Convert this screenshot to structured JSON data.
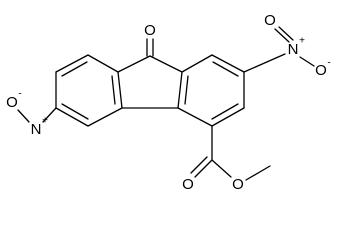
{
  "atoms": [
    {
      "label": "O"
    },
    {
      "label": "N",
      "charge": "+"
    },
    {
      "label": "O"
    },
    {
      "label": "O",
      "charge": "-"
    },
    {
      "label": "N",
      "charge": "+"
    },
    {
      "label": "O",
      "charge": "-"
    },
    {
      "label": "O"
    },
    {
      "label": "O"
    }
  ]
}
